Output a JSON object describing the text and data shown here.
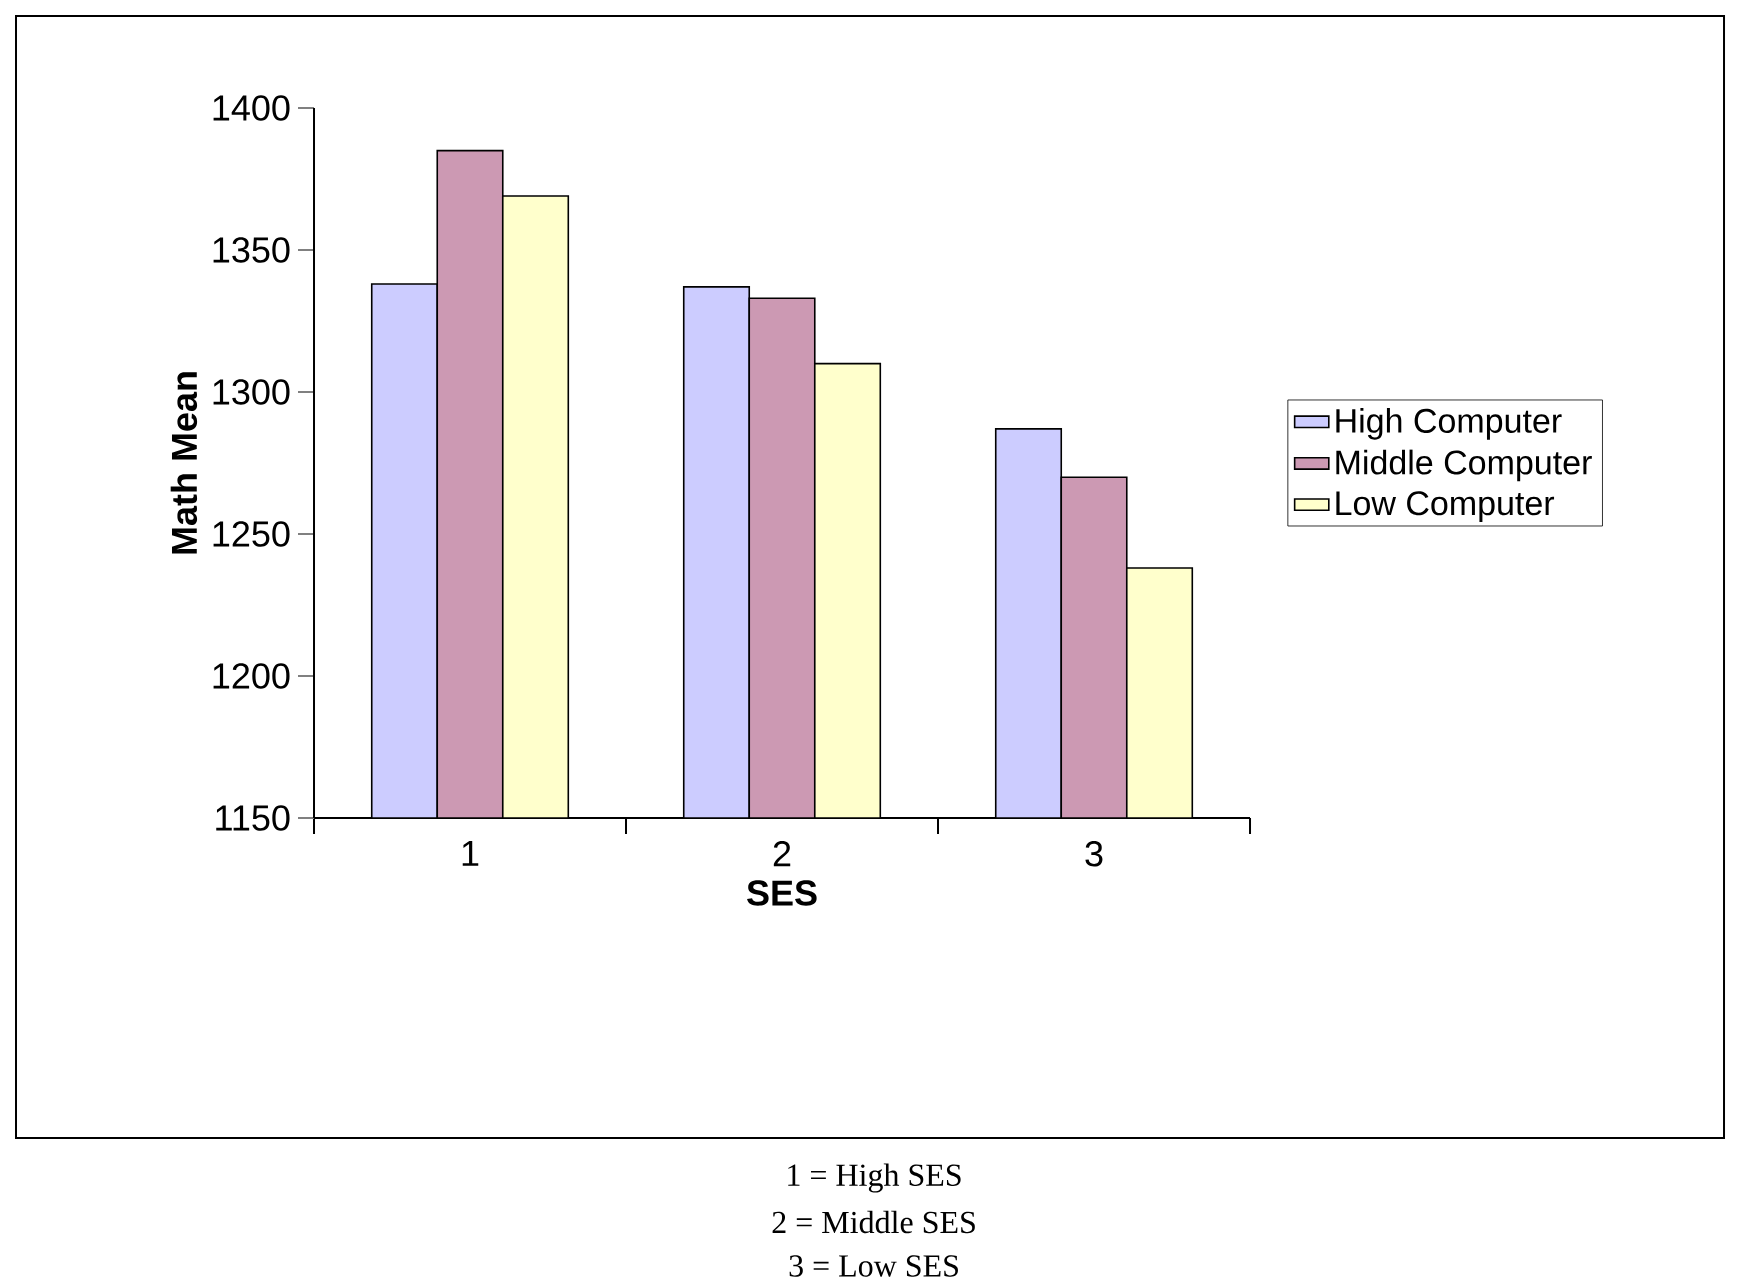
{
  "chart_data": {
    "type": "bar",
    "xlabel": "SES",
    "ylabel": "Math Mean",
    "categories": [
      "1",
      "2",
      "3"
    ],
    "series": [
      {
        "name": "High Computer",
        "color": "#ccccff",
        "values": [
          1338,
          1337,
          1287
        ]
      },
      {
        "name": "Middle Computer",
        "color": "#cc99b3",
        "values": [
          1385,
          1333,
          1270
        ]
      },
      {
        "name": "Low Computer",
        "color": "#ffffcc",
        "values": [
          1369,
          1310,
          1238
        ]
      }
    ],
    "ylim": [
      1150,
      1400
    ],
    "yticks": [
      1150,
      1200,
      1250,
      1300,
      1350,
      1400
    ],
    "legend": "right",
    "grid": false,
    "annotations": [
      "1 = High SES",
      "2 = Middle SES",
      "3 = Low SES"
    ]
  }
}
